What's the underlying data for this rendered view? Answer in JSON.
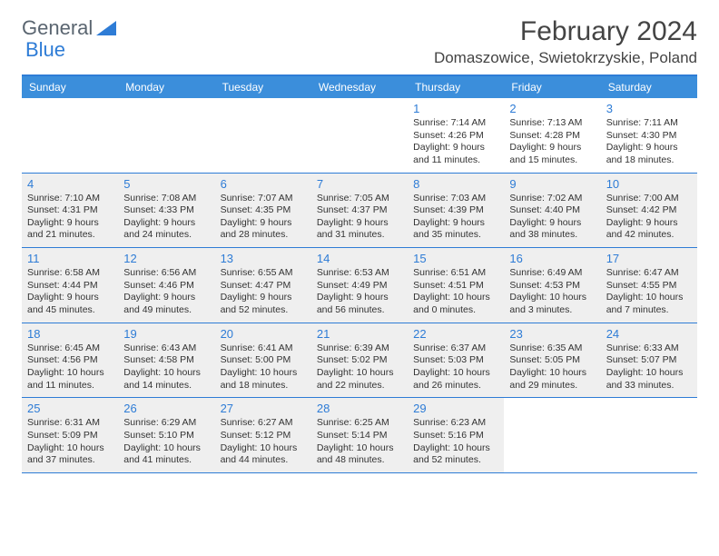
{
  "logo": {
    "text1": "General",
    "text2": "Blue"
  },
  "title": "February 2024",
  "location": "Domaszowice, Swietokrzyskie, Poland",
  "colors": {
    "header_bg": "#3b8edb",
    "border": "#2e7cd6",
    "daynum": "#2e7cd6",
    "shaded": "#efefef",
    "text": "#333333",
    "logo_gray": "#5a6570"
  },
  "day_names": [
    "Sunday",
    "Monday",
    "Tuesday",
    "Wednesday",
    "Thursday",
    "Friday",
    "Saturday"
  ],
  "weeks": [
    [
      {
        "day": "",
        "sunrise": "",
        "sunset": "",
        "daylight": "",
        "shaded": false
      },
      {
        "day": "",
        "sunrise": "",
        "sunset": "",
        "daylight": "",
        "shaded": false
      },
      {
        "day": "",
        "sunrise": "",
        "sunset": "",
        "daylight": "",
        "shaded": false
      },
      {
        "day": "",
        "sunrise": "",
        "sunset": "",
        "daylight": "",
        "shaded": false
      },
      {
        "day": "1",
        "sunrise": "Sunrise: 7:14 AM",
        "sunset": "Sunset: 4:26 PM",
        "daylight": "Daylight: 9 hours and 11 minutes.",
        "shaded": false
      },
      {
        "day": "2",
        "sunrise": "Sunrise: 7:13 AM",
        "sunset": "Sunset: 4:28 PM",
        "daylight": "Daylight: 9 hours and 15 minutes.",
        "shaded": false
      },
      {
        "day": "3",
        "sunrise": "Sunrise: 7:11 AM",
        "sunset": "Sunset: 4:30 PM",
        "daylight": "Daylight: 9 hours and 18 minutes.",
        "shaded": false
      }
    ],
    [
      {
        "day": "4",
        "sunrise": "Sunrise: 7:10 AM",
        "sunset": "Sunset: 4:31 PM",
        "daylight": "Daylight: 9 hours and 21 minutes.",
        "shaded": true
      },
      {
        "day": "5",
        "sunrise": "Sunrise: 7:08 AM",
        "sunset": "Sunset: 4:33 PM",
        "daylight": "Daylight: 9 hours and 24 minutes.",
        "shaded": true
      },
      {
        "day": "6",
        "sunrise": "Sunrise: 7:07 AM",
        "sunset": "Sunset: 4:35 PM",
        "daylight": "Daylight: 9 hours and 28 minutes.",
        "shaded": true
      },
      {
        "day": "7",
        "sunrise": "Sunrise: 7:05 AM",
        "sunset": "Sunset: 4:37 PM",
        "daylight": "Daylight: 9 hours and 31 minutes.",
        "shaded": true
      },
      {
        "day": "8",
        "sunrise": "Sunrise: 7:03 AM",
        "sunset": "Sunset: 4:39 PM",
        "daylight": "Daylight: 9 hours and 35 minutes.",
        "shaded": true
      },
      {
        "day": "9",
        "sunrise": "Sunrise: 7:02 AM",
        "sunset": "Sunset: 4:40 PM",
        "daylight": "Daylight: 9 hours and 38 minutes.",
        "shaded": true
      },
      {
        "day": "10",
        "sunrise": "Sunrise: 7:00 AM",
        "sunset": "Sunset: 4:42 PM",
        "daylight": "Daylight: 9 hours and 42 minutes.",
        "shaded": true
      }
    ],
    [
      {
        "day": "11",
        "sunrise": "Sunrise: 6:58 AM",
        "sunset": "Sunset: 4:44 PM",
        "daylight": "Daylight: 9 hours and 45 minutes.",
        "shaded": true
      },
      {
        "day": "12",
        "sunrise": "Sunrise: 6:56 AM",
        "sunset": "Sunset: 4:46 PM",
        "daylight": "Daylight: 9 hours and 49 minutes.",
        "shaded": true
      },
      {
        "day": "13",
        "sunrise": "Sunrise: 6:55 AM",
        "sunset": "Sunset: 4:47 PM",
        "daylight": "Daylight: 9 hours and 52 minutes.",
        "shaded": true
      },
      {
        "day": "14",
        "sunrise": "Sunrise: 6:53 AM",
        "sunset": "Sunset: 4:49 PM",
        "daylight": "Daylight: 9 hours and 56 minutes.",
        "shaded": true
      },
      {
        "day": "15",
        "sunrise": "Sunrise: 6:51 AM",
        "sunset": "Sunset: 4:51 PM",
        "daylight": "Daylight: 10 hours and 0 minutes.",
        "shaded": true
      },
      {
        "day": "16",
        "sunrise": "Sunrise: 6:49 AM",
        "sunset": "Sunset: 4:53 PM",
        "daylight": "Daylight: 10 hours and 3 minutes.",
        "shaded": true
      },
      {
        "day": "17",
        "sunrise": "Sunrise: 6:47 AM",
        "sunset": "Sunset: 4:55 PM",
        "daylight": "Daylight: 10 hours and 7 minutes.",
        "shaded": true
      }
    ],
    [
      {
        "day": "18",
        "sunrise": "Sunrise: 6:45 AM",
        "sunset": "Sunset: 4:56 PM",
        "daylight": "Daylight: 10 hours and 11 minutes.",
        "shaded": true
      },
      {
        "day": "19",
        "sunrise": "Sunrise: 6:43 AM",
        "sunset": "Sunset: 4:58 PM",
        "daylight": "Daylight: 10 hours and 14 minutes.",
        "shaded": true
      },
      {
        "day": "20",
        "sunrise": "Sunrise: 6:41 AM",
        "sunset": "Sunset: 5:00 PM",
        "daylight": "Daylight: 10 hours and 18 minutes.",
        "shaded": true
      },
      {
        "day": "21",
        "sunrise": "Sunrise: 6:39 AM",
        "sunset": "Sunset: 5:02 PM",
        "daylight": "Daylight: 10 hours and 22 minutes.",
        "shaded": true
      },
      {
        "day": "22",
        "sunrise": "Sunrise: 6:37 AM",
        "sunset": "Sunset: 5:03 PM",
        "daylight": "Daylight: 10 hours and 26 minutes.",
        "shaded": true
      },
      {
        "day": "23",
        "sunrise": "Sunrise: 6:35 AM",
        "sunset": "Sunset: 5:05 PM",
        "daylight": "Daylight: 10 hours and 29 minutes.",
        "shaded": true
      },
      {
        "day": "24",
        "sunrise": "Sunrise: 6:33 AM",
        "sunset": "Sunset: 5:07 PM",
        "daylight": "Daylight: 10 hours and 33 minutes.",
        "shaded": true
      }
    ],
    [
      {
        "day": "25",
        "sunrise": "Sunrise: 6:31 AM",
        "sunset": "Sunset: 5:09 PM",
        "daylight": "Daylight: 10 hours and 37 minutes.",
        "shaded": true
      },
      {
        "day": "26",
        "sunrise": "Sunrise: 6:29 AM",
        "sunset": "Sunset: 5:10 PM",
        "daylight": "Daylight: 10 hours and 41 minutes.",
        "shaded": true
      },
      {
        "day": "27",
        "sunrise": "Sunrise: 6:27 AM",
        "sunset": "Sunset: 5:12 PM",
        "daylight": "Daylight: 10 hours and 44 minutes.",
        "shaded": true
      },
      {
        "day": "28",
        "sunrise": "Sunrise: 6:25 AM",
        "sunset": "Sunset: 5:14 PM",
        "daylight": "Daylight: 10 hours and 48 minutes.",
        "shaded": true
      },
      {
        "day": "29",
        "sunrise": "Sunrise: 6:23 AM",
        "sunset": "Sunset: 5:16 PM",
        "daylight": "Daylight: 10 hours and 52 minutes.",
        "shaded": true
      },
      {
        "day": "",
        "sunrise": "",
        "sunset": "",
        "daylight": "",
        "shaded": false
      },
      {
        "day": "",
        "sunrise": "",
        "sunset": "",
        "daylight": "",
        "shaded": false
      }
    ]
  ]
}
